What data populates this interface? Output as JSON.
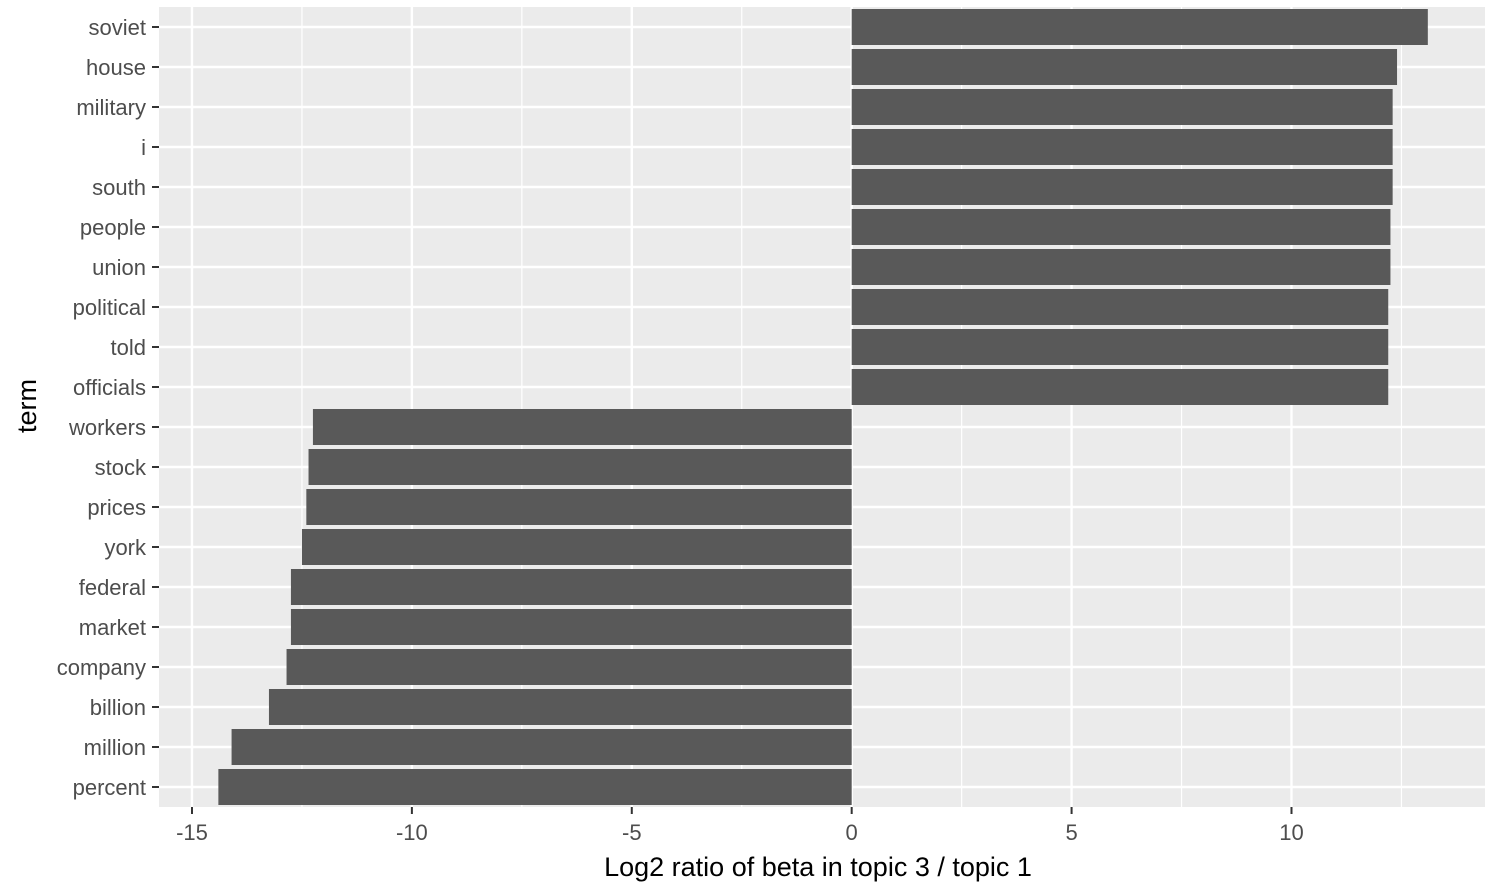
{
  "chart_data": {
    "type": "bar",
    "orientation": "horizontal",
    "title": "",
    "xlabel": "Log2 ratio of beta in topic 3 / topic 1",
    "ylabel": "term",
    "xlim": [
      -15.75,
      14.4
    ],
    "x_ticks": [
      -15,
      -10,
      -5,
      0,
      5,
      10
    ],
    "x_tick_labels": [
      "-15",
      "-10",
      "-5",
      "0",
      "5",
      "10"
    ],
    "x_minor_ticks": [
      -12.5,
      -7.5,
      -2.5,
      2.5,
      7.5,
      12.5
    ],
    "grid": true,
    "legend": "none",
    "colors": {
      "panel": "#ebebeb",
      "grid": "#ffffff",
      "bar": "#595959",
      "tick_text": "#4d4d4d",
      "title_text": "#000000"
    },
    "categories": [
      "soviet",
      "house",
      "military",
      "i",
      "south",
      "people",
      "union",
      "political",
      "told",
      "officials",
      "workers",
      "stock",
      "prices",
      "york",
      "federal",
      "market",
      "company",
      "billion",
      "million",
      "percent"
    ],
    "values": [
      13.1,
      12.4,
      12.3,
      12.3,
      12.3,
      12.25,
      12.25,
      12.2,
      12.2,
      12.2,
      -12.25,
      -12.35,
      -12.4,
      -12.5,
      -12.75,
      -12.75,
      -12.85,
      -13.25,
      -14.1,
      -14.4
    ]
  }
}
